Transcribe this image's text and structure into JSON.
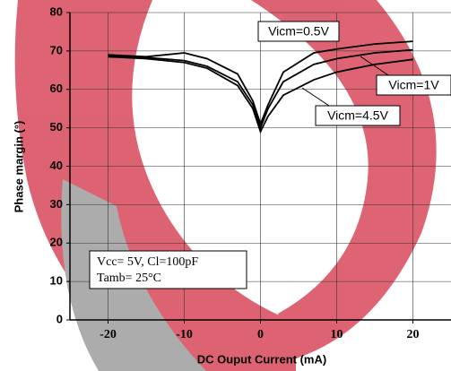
{
  "chart_data": {
    "type": "line",
    "x_label": "DC Ouput Current (mA)",
    "y_label": "Phase margin (°)",
    "x": [
      -20,
      -15,
      -10,
      -7,
      -3,
      -1,
      0,
      1,
      3,
      7,
      10,
      15,
      20
    ],
    "series": [
      {
        "name": "Vicm=0.5V",
        "color": "#000000",
        "values": [
          69,
          68.5,
          69.5,
          68,
          64,
          57,
          51,
          56,
          64.5,
          69.5,
          70.5,
          71.8,
          72.5
        ]
      },
      {
        "name": "Vicm=1V",
        "color": "#000000",
        "values": [
          68.8,
          68.3,
          67.5,
          66,
          62,
          56,
          50,
          55,
          62,
          66.5,
          68,
          69.5,
          70.3
        ]
      },
      {
        "name": "Vicm=4.5V",
        "color": "#000000",
        "values": [
          68.5,
          68,
          67,
          65.5,
          61,
          55,
          49,
          53,
          58.5,
          62.5,
          64.5,
          66.5,
          67.8
        ]
      }
    ],
    "xlim": [
      -25,
      25
    ],
    "ylim": [
      0,
      80
    ],
    "xticks": [
      -20,
      -10,
      0,
      10,
      20
    ],
    "yticks": [
      0,
      10,
      20,
      30,
      40,
      50,
      60,
      70,
      80
    ],
    "grid": true,
    "conditions": [
      "Vcc= 5V, Cl=100pF",
      "Tamb= 25°C"
    ]
  }
}
